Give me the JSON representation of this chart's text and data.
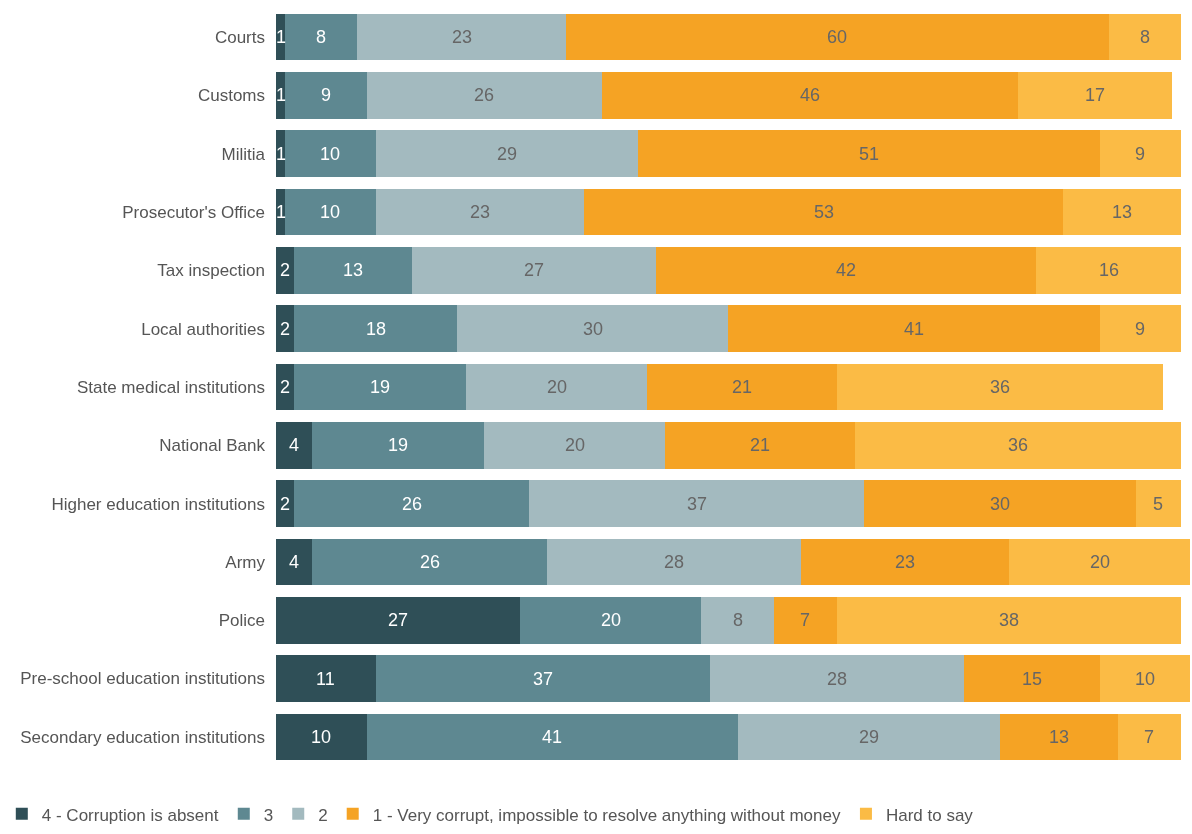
{
  "chart_data": {
    "type": "bar",
    "orientation": "horizontal",
    "stacked": true,
    "data_labels": true,
    "legend": "bottom",
    "tick_labels": "y",
    "categories": [
      "Courts",
      "Customs",
      "Militia",
      "Prosecutor's Office",
      "Tax inspection",
      "Local authorities",
      "State medical institutions",
      "National Bank",
      "Higher education institutions",
      "Army",
      "Police",
      "Pre-school education institutions",
      "Secondary education institutions"
    ],
    "xlim": [
      0,
      101
    ],
    "series": [
      {
        "name": "4 - Corruption is absent",
        "color": "#2f4f57",
        "values": [
          1,
          1,
          1,
          1,
          2,
          2,
          2,
          4,
          2,
          4,
          27,
          11,
          10
        ]
      },
      {
        "name": "3",
        "color": "#5e8891",
        "values": [
          8,
          9,
          10,
          10,
          13,
          18,
          19,
          19,
          26,
          26,
          20,
          37,
          41
        ]
      },
      {
        "name": "2",
        "color": "#a3babf",
        "values": [
          23,
          26,
          29,
          23,
          27,
          30,
          20,
          20,
          37,
          28,
          8,
          28,
          29
        ]
      },
      {
        "name": "1 - Very corrupt, impossible to resolve anything without money",
        "color": "#f5a324",
        "values": [
          60,
          46,
          51,
          53,
          42,
          41,
          21,
          21,
          30,
          23,
          7,
          15,
          13
        ]
      },
      {
        "name": "Hard to say",
        "color": "#fbbb45",
        "values": [
          8,
          17,
          9,
          13,
          16,
          9,
          36,
          36,
          5,
          20,
          38,
          10,
          7
        ]
      }
    ]
  }
}
